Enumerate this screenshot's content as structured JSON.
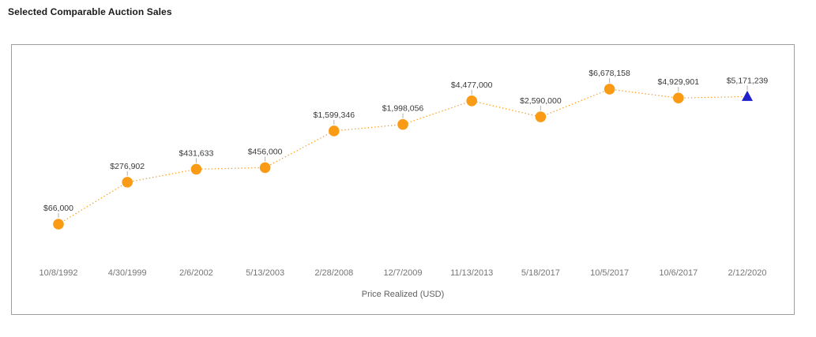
{
  "header": {
    "title": "Selected Comparable Auction Sales"
  },
  "chart_data": {
    "type": "line",
    "title": "Selected Comparable Auction Sales",
    "xlabel": "Price Realized (USD)",
    "ylabel": "",
    "y_scale": "log",
    "grid": false,
    "legend_position": "none",
    "line_style": "dotted",
    "categories": [
      "10/8/1992",
      "4/30/1999",
      "2/6/2002",
      "5/13/2003",
      "2/28/2008",
      "12/7/2009",
      "11/13/2013",
      "5/18/2017",
      "10/5/2017",
      "10/6/2017",
      "2/12/2020"
    ],
    "series": [
      {
        "name": "Price Realized (USD)",
        "values": [
          66000,
          276902,
          431633,
          456000,
          1599346,
          1998056,
          4477000,
          2590000,
          6678158,
          4929901,
          5171239
        ],
        "point_labels": [
          "$66,000",
          "$276,902",
          "$431,633",
          "$456,000",
          "$1,599,346",
          "$1,998,056",
          "$4,477,000",
          "$2,590,000",
          "$6,678,158",
          "$4,929,901",
          "$5,171,239"
        ],
        "markers": [
          "circle",
          "circle",
          "circle",
          "circle",
          "circle",
          "circle",
          "circle",
          "circle",
          "circle",
          "circle",
          "triangle"
        ],
        "color": "#f99b15"
      }
    ],
    "highlight_marker_color": "#2121cc"
  },
  "colors": {
    "panel_border": "#9e9e9e",
    "point_orange": "#f99b15",
    "point_blue": "#2121cc",
    "value_label": "#3a3a3a",
    "tick_label": "#757575",
    "axis_title": "#616161",
    "stem": "#b0b0b0"
  }
}
